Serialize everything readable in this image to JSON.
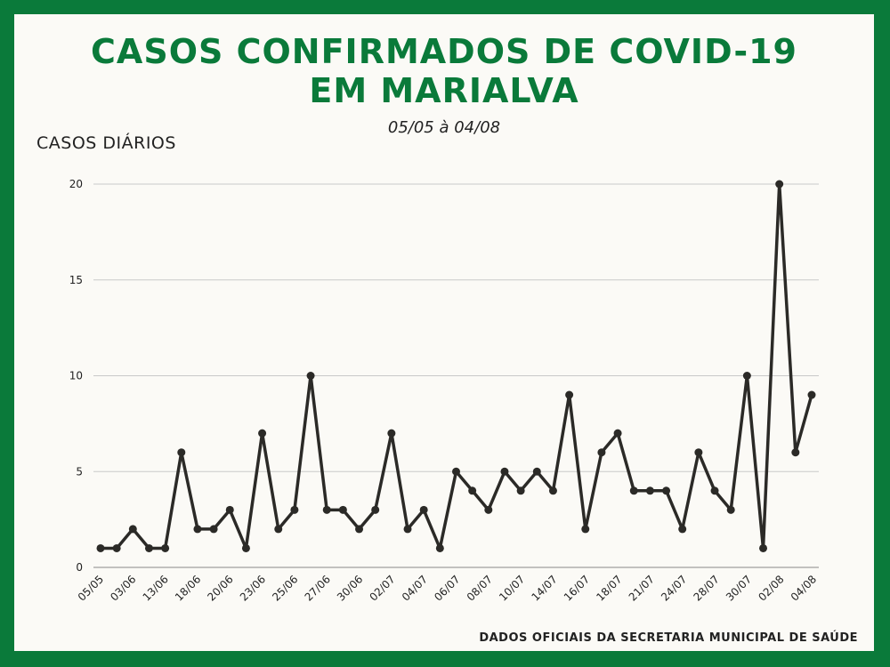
{
  "title_line1": "CASOS CONFIRMADOS DE COVID-19",
  "title_line2": "EM MARIALVA",
  "subtitle": "05/05 à  04/08",
  "ylabel": "CASOS DIÁRIOS",
  "source": "DADOS OFICIAIS DA SECRETARIA MUNICIPAL DE SAÚDE",
  "colors": {
    "frame": "#0a7a3a",
    "title": "#0a7a3a",
    "line": "#2b2a27",
    "grid": "#c9c9c9"
  },
  "chart_data": {
    "type": "line",
    "title": "CASOS CONFIRMADOS DE COVID-19 EM MARIALVA",
    "subtitle": "05/05 à  04/08",
    "ylabel": "CASOS DIÁRIOS",
    "xlabel": "",
    "ylim": [
      0,
      20
    ],
    "yticks": [
      0,
      5,
      10,
      15,
      20
    ],
    "grid": true,
    "x_tick_labels": [
      "05/05",
      "03/06",
      "13/06",
      "18/06",
      "20/06",
      "23/06",
      "25/06",
      "27/06",
      "30/06",
      "02/07",
      "04/07",
      "06/07",
      "08/07",
      "10/07",
      "14/07",
      "16/07",
      "18/07",
      "21/07",
      "24/07",
      "28/07",
      "30/07",
      "02/08",
      "04/08"
    ],
    "values": [
      1,
      1,
      2,
      1,
      1,
      6,
      2,
      2,
      3,
      1,
      7,
      2,
      3,
      10,
      3,
      3,
      2,
      3,
      7,
      2,
      3,
      1,
      5,
      4,
      3,
      5,
      4,
      5,
      4,
      9,
      2,
      6,
      7,
      4,
      4,
      4,
      2,
      6,
      4,
      3,
      10,
      1,
      20,
      6,
      9
    ]
  }
}
